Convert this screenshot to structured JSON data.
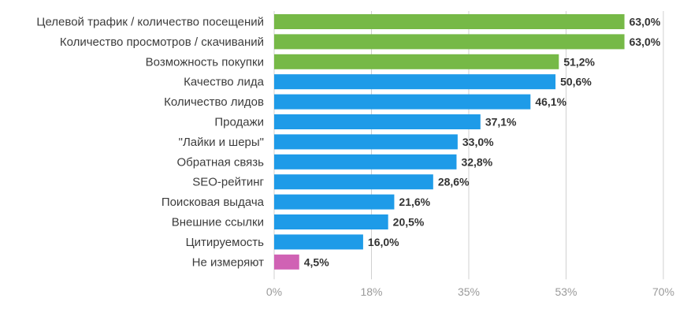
{
  "chart_data": {
    "type": "bar",
    "orientation": "horizontal",
    "title": "",
    "xlabel": "",
    "ylabel": "",
    "xlim": [
      0,
      70
    ],
    "grid": true,
    "legend": "none",
    "categories": [
      "Целевой трафик / количество посещений",
      "Количество просмотров / скачиваний",
      "Возможность покупки",
      "Качество лида",
      "Количество лидов",
      "Продажи",
      "\"Лайки и шеры\"",
      "Обратная связь",
      "SEO-рейтинг",
      "Поисковая выдача",
      "Внешние ссылки",
      "Цитируемость",
      "Не измеряют"
    ],
    "values": [
      63.0,
      63.0,
      51.2,
      50.6,
      46.1,
      37.1,
      33.0,
      32.8,
      28.6,
      21.6,
      20.5,
      16.0,
      4.5
    ],
    "value_labels": [
      "63,0%",
      "63,0%",
      "51,2%",
      "50,6%",
      "46,1%",
      "37,1%",
      "33,0%",
      "32,8%",
      "28,6%",
      "21,6%",
      "20,5%",
      "16,0%",
      "4,5%"
    ],
    "bar_colors": [
      "#76b947",
      "#76b947",
      "#76b947",
      "#1e9be8",
      "#1e9be8",
      "#1e9be8",
      "#1e9be8",
      "#1e9be8",
      "#1e9be8",
      "#1e9be8",
      "#1e9be8",
      "#1e9be8",
      "#d062b4"
    ],
    "x_ticks": [
      {
        "value": 0,
        "label": "0%"
      },
      {
        "value": 17.5,
        "label": "18%"
      },
      {
        "value": 35,
        "label": "35%"
      },
      {
        "value": 52.5,
        "label": "53%"
      },
      {
        "value": 70,
        "label": "70%"
      }
    ]
  }
}
